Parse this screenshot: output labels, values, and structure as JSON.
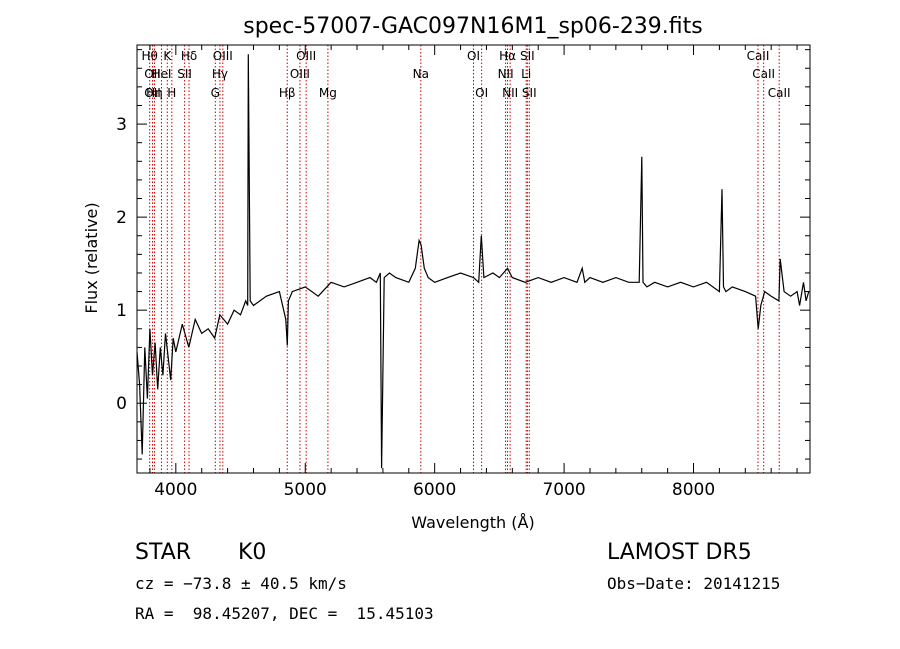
{
  "chart_data": {
    "type": "line",
    "title": "spec-57007-GAC097N16M1_sp06-239.fits",
    "xlabel": "Wavelength (Å)",
    "ylabel": "Flux (relative)",
    "xlim": [
      3700,
      8900
    ],
    "ylim": [
      -0.75,
      3.85
    ],
    "xticks": [
      4000,
      5000,
      6000,
      7000,
      8000
    ],
    "yticks": [
      0,
      1,
      2,
      3
    ],
    "grid": false,
    "series": [
      {
        "x": [
          3700,
          3720,
          3740,
          3760,
          3780,
          3800,
          3820,
          3840,
          3860,
          3880,
          3900,
          3920,
          3940,
          3960,
          3980,
          4000,
          4050,
          4100,
          4150,
          4200,
          4250,
          4300,
          4340,
          4400,
          4450,
          4500,
          4540,
          4555,
          4560,
          4575,
          4600,
          4700,
          4800,
          4850,
          4861,
          4870,
          4900,
          5000,
          5100,
          5200,
          5300,
          5400,
          5500,
          5550,
          5580,
          5590,
          5610,
          5650,
          5700,
          5800,
          5850,
          5880,
          5895,
          5920,
          5950,
          6000,
          6100,
          6200,
          6300,
          6340,
          6360,
          6380,
          6450,
          6500,
          6563,
          6600,
          6700,
          6800,
          6900,
          7000,
          7100,
          7140,
          7160,
          7200,
          7300,
          7400,
          7500,
          7580,
          7600,
          7610,
          7640,
          7700,
          7800,
          7900,
          8000,
          8100,
          8200,
          8220,
          8232,
          8250,
          8300,
          8400,
          8480,
          8500,
          8520,
          8550,
          8600,
          8660,
          8670,
          8700,
          8750,
          8800,
          8820,
          8850,
          8870,
          8890
        ],
        "y": [
          0.55,
          0.2,
          -0.55,
          0.6,
          0.05,
          0.8,
          0.3,
          0.65,
          0.15,
          0.6,
          0.3,
          0.75,
          0.5,
          0.25,
          0.7,
          0.55,
          0.85,
          0.6,
          0.9,
          0.75,
          0.8,
          0.7,
          0.95,
          0.85,
          1.0,
          0.95,
          1.1,
          1.05,
          3.75,
          1.1,
          1.05,
          1.15,
          1.2,
          0.9,
          0.62,
          1.1,
          1.2,
          1.25,
          1.15,
          1.3,
          1.25,
          1.3,
          1.35,
          1.3,
          1.4,
          -0.7,
          1.35,
          1.4,
          1.35,
          1.3,
          1.45,
          1.75,
          1.7,
          1.45,
          1.35,
          1.3,
          1.35,
          1.4,
          1.35,
          1.3,
          1.8,
          1.35,
          1.4,
          1.35,
          1.45,
          1.35,
          1.3,
          1.35,
          1.3,
          1.35,
          1.3,
          1.45,
          1.3,
          1.35,
          1.3,
          1.35,
          1.3,
          1.3,
          2.65,
          1.3,
          1.25,
          1.3,
          1.25,
          1.3,
          1.25,
          1.3,
          1.2,
          2.3,
          1.25,
          1.2,
          1.25,
          1.2,
          1.15,
          0.8,
          1.05,
          1.2,
          1.15,
          1.1,
          1.55,
          1.2,
          1.15,
          1.2,
          1.05,
          1.3,
          1.1,
          1.2
        ]
      }
    ],
    "line_markers": [
      {
        "wave": 3798,
        "label": "Hθ",
        "row": 0
      },
      {
        "wave": 3820,
        "label": "OII",
        "row": 1
      },
      {
        "wave": 3820,
        "label": "OII",
        "row": 2
      },
      {
        "wave": 3835,
        "label": "Hη",
        "row": 2
      },
      {
        "wave": 3889,
        "label": "HeI",
        "row": 1
      },
      {
        "wave": 3934,
        "label": "K",
        "row": 0
      },
      {
        "wave": 3969,
        "label": "H",
        "row": 2
      },
      {
        "wave": 4102,
        "label": "Hδ",
        "row": 0
      },
      {
        "wave": 4068,
        "label": "SII",
        "row": 1
      },
      {
        "wave": 4341,
        "label": "Hγ",
        "row": 1
      },
      {
        "wave": 4363,
        "label": "OIII",
        "row": 0
      },
      {
        "wave": 4305,
        "label": "G",
        "row": 2
      },
      {
        "wave": 4861,
        "label": "Hβ",
        "row": 2
      },
      {
        "wave": 4959,
        "label": "OIII",
        "row": 1
      },
      {
        "wave": 5007,
        "label": "OIII",
        "row": 0
      },
      {
        "wave": 5175,
        "label": "Mg",
        "row": 2
      },
      {
        "wave": 5893,
        "label": "Na",
        "row": 1
      },
      {
        "wave": 6300,
        "label": "OI",
        "row": 0
      },
      {
        "wave": 6363,
        "label": "OI",
        "row": 2
      },
      {
        "wave": 6548,
        "label": "NII",
        "row": 1
      },
      {
        "wave": 6563,
        "label": "Hα",
        "row": 0
      },
      {
        "wave": 6583,
        "label": "NII",
        "row": 2
      },
      {
        "wave": 6716,
        "label": "SII",
        "row": 0
      },
      {
        "wave": 6707,
        "label": "Li",
        "row": 1
      },
      {
        "wave": 6731,
        "label": "SII",
        "row": 2
      },
      {
        "wave": 8498,
        "label": "CaII",
        "row": 0
      },
      {
        "wave": 8542,
        "label": "CaII",
        "row": 1
      },
      {
        "wave": 8662,
        "label": "CaII",
        "row": 2
      }
    ],
    "marker_color": "#cc0000",
    "line_color": "#000000"
  },
  "info": {
    "class": "STAR",
    "subclass": "K0",
    "survey": "LAMOST DR5",
    "cz": "cz = −73.8 ± 40.5 km/s",
    "obs_date": "Obs−Date: 20141215",
    "coords": "RA =  98.45207, DEC =  15.45103"
  }
}
